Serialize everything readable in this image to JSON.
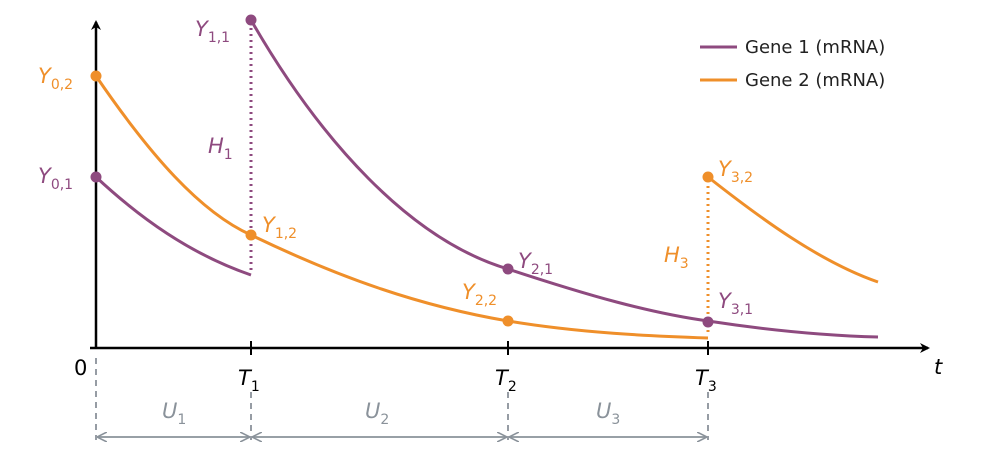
{
  "legend": {
    "gene1": "Gene 1 (mRNA)",
    "gene2": "Gene 2 (mRNA)"
  },
  "colors": {
    "gene1": "#8e4a7f",
    "gene2": "#ef8f2a",
    "axis": "#000000",
    "interval": "#8a929a"
  },
  "axis": {
    "origin": "0",
    "t": "t",
    "ticks": [
      {
        "base": "T",
        "sub": "1"
      },
      {
        "base": "T",
        "sub": "2"
      },
      {
        "base": "T",
        "sub": "3"
      }
    ]
  },
  "points": {
    "y01": {
      "base": "Y",
      "sub": "0,1"
    },
    "y02": {
      "base": "Y",
      "sub": "0,2"
    },
    "y11": {
      "base": "Y",
      "sub": "1,1"
    },
    "y12": {
      "base": "Y",
      "sub": "1,2"
    },
    "y21": {
      "base": "Y",
      "sub": "2,1"
    },
    "y22": {
      "base": "Y",
      "sub": "2,2"
    },
    "y31": {
      "base": "Y",
      "sub": "3,1"
    },
    "y32": {
      "base": "Y",
      "sub": "3,2"
    }
  },
  "jumps": {
    "h1": {
      "base": "H",
      "sub": "1"
    },
    "h3": {
      "base": "H",
      "sub": "3"
    }
  },
  "intervals": [
    {
      "base": "U",
      "sub": "1"
    },
    {
      "base": "U",
      "sub": "2"
    },
    {
      "base": "U",
      "sub": "3"
    }
  ]
}
